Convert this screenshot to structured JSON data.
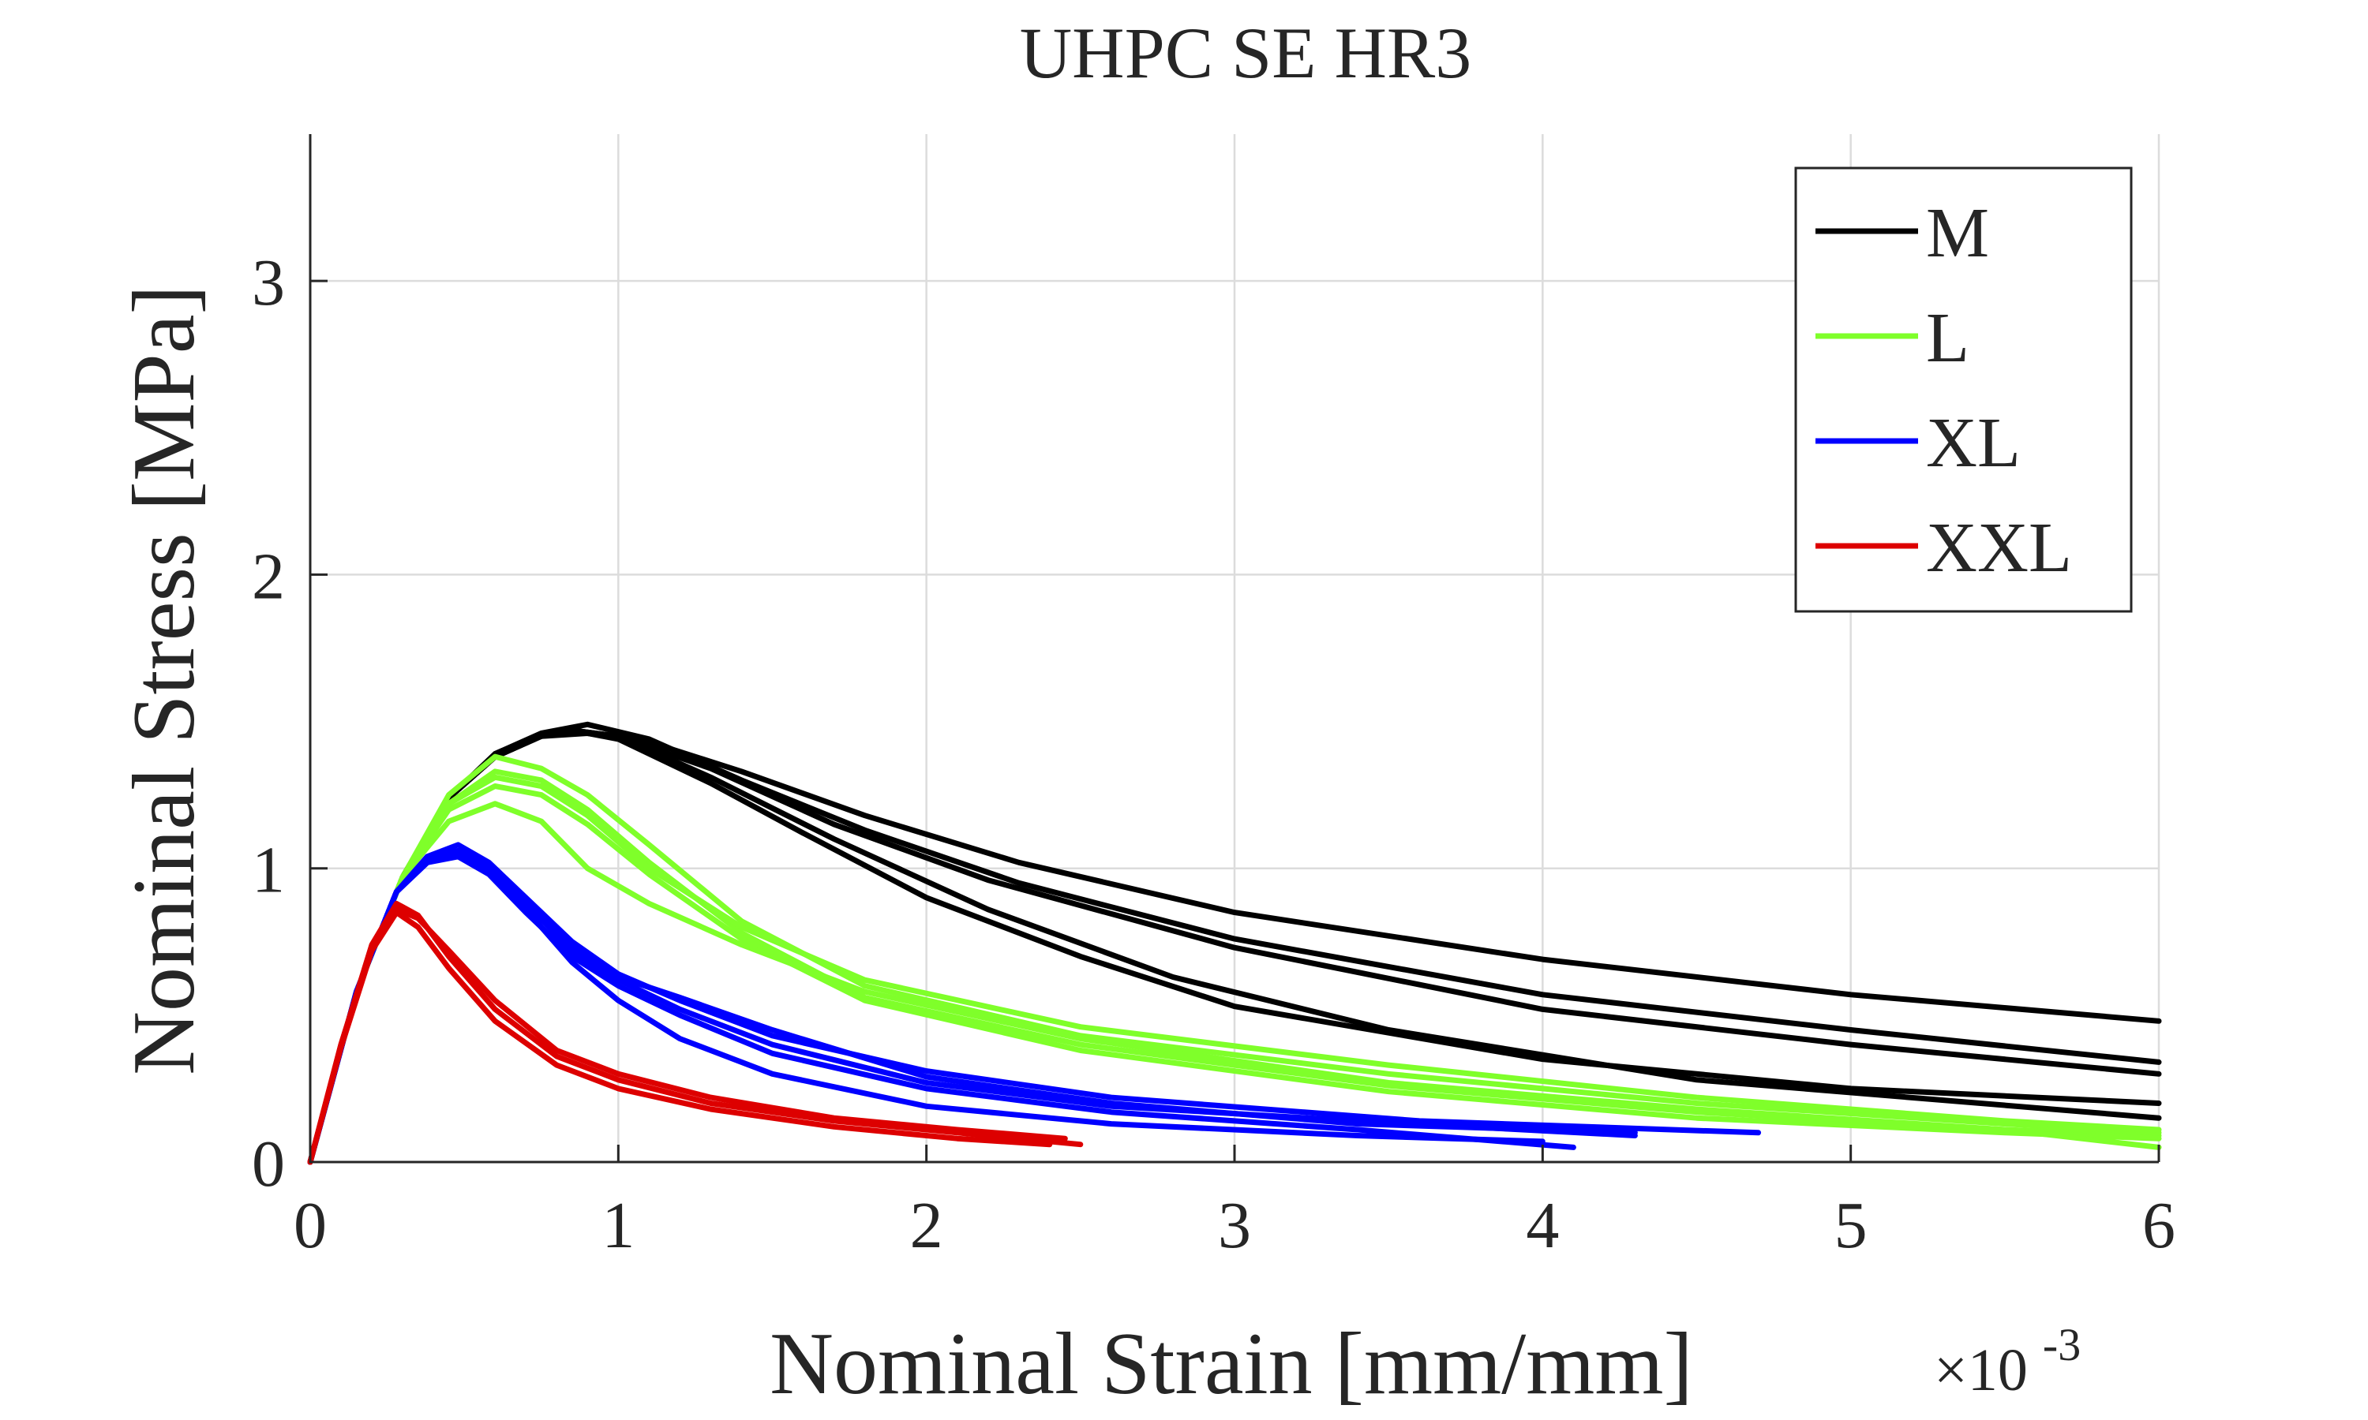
{
  "chart_data": {
    "type": "line",
    "title": "UHPC SE HR3",
    "xlabel": "Nominal Strain [mm/mm]",
    "ylabel": "Nominal Stress [MPa]",
    "x_exponent_label": "×10",
    "x_exponent_power": "-3",
    "xlim": [
      0,
      6
    ],
    "ylim": [
      0,
      3.5
    ],
    "x_ticks": [
      0,
      1,
      2,
      3,
      4,
      5,
      6
    ],
    "y_ticks": [
      0,
      1,
      2,
      3
    ],
    "grid": true,
    "legend_position": "top-right",
    "legend": [
      {
        "label": "M",
        "color": "#000000"
      },
      {
        "label": "L",
        "color": "#7fff2a"
      },
      {
        "label": "XL",
        "color": "#0000ff"
      },
      {
        "label": "XXL",
        "color": "#dd0000"
      }
    ],
    "series": [
      {
        "name": "M",
        "color": "#000000",
        "points": [
          [
            0,
            0
          ],
          [
            0.15,
            0.58
          ],
          [
            0.3,
            0.97
          ],
          [
            0.45,
            1.24
          ],
          [
            0.6,
            1.39
          ],
          [
            0.75,
            1.46
          ],
          [
            0.9,
            1.49
          ],
          [
            1.1,
            1.44
          ],
          [
            1.4,
            1.3
          ],
          [
            1.8,
            1.13
          ],
          [
            2.3,
            0.95
          ],
          [
            3,
            0.76
          ],
          [
            4,
            0.57
          ],
          [
            5,
            0.45
          ],
          [
            6,
            0.34
          ]
        ]
      },
      {
        "name": "M",
        "color": "#000000",
        "points": [
          [
            0,
            0
          ],
          [
            0.15,
            0.58
          ],
          [
            0.3,
            0.97
          ],
          [
            0.45,
            1.24
          ],
          [
            0.6,
            1.38
          ],
          [
            0.75,
            1.45
          ],
          [
            0.9,
            1.46
          ],
          [
            1.1,
            1.43
          ],
          [
            1.4,
            1.33
          ],
          [
            1.8,
            1.18
          ],
          [
            2.3,
            1.02
          ],
          [
            3,
            0.85
          ],
          [
            4,
            0.69
          ],
          [
            5,
            0.57
          ],
          [
            6,
            0.48
          ]
        ]
      },
      {
        "name": "M",
        "color": "#000000",
        "points": [
          [
            0,
            0
          ],
          [
            0.15,
            0.58
          ],
          [
            0.3,
            0.97
          ],
          [
            0.45,
            1.24
          ],
          [
            0.6,
            1.38
          ],
          [
            0.75,
            1.45
          ],
          [
            0.85,
            1.47
          ],
          [
            1,
            1.45
          ],
          [
            1.3,
            1.34
          ],
          [
            1.7,
            1.15
          ],
          [
            2.2,
            0.96
          ],
          [
            3,
            0.73
          ],
          [
            4,
            0.52
          ],
          [
            5,
            0.4
          ],
          [
            6,
            0.3
          ]
        ]
      },
      {
        "name": "M",
        "color": "#000000",
        "points": [
          [
            0,
            0
          ],
          [
            0.15,
            0.58
          ],
          [
            0.3,
            0.97
          ],
          [
            0.45,
            1.24
          ],
          [
            0.6,
            1.38
          ],
          [
            0.75,
            1.45
          ],
          [
            0.85,
            1.47
          ],
          [
            1,
            1.44
          ],
          [
            1.3,
            1.29
          ],
          [
            1.6,
            1.12
          ],
          [
            2,
            0.9
          ],
          [
            2.5,
            0.7
          ],
          [
            3,
            0.53
          ],
          [
            4,
            0.35
          ],
          [
            5,
            0.25
          ],
          [
            6,
            0.2
          ]
        ]
      },
      {
        "name": "M",
        "color": "#000000",
        "points": [
          [
            0,
            0
          ],
          [
            0.15,
            0.58
          ],
          [
            0.3,
            0.97
          ],
          [
            0.45,
            1.24
          ],
          [
            0.6,
            1.38
          ],
          [
            0.75,
            1.45
          ],
          [
            0.85,
            1.47
          ],
          [
            1,
            1.45
          ],
          [
            1.3,
            1.31
          ],
          [
            1.7,
            1.1
          ],
          [
            2.2,
            0.86
          ],
          [
            2.8,
            0.63
          ],
          [
            3.5,
            0.45
          ],
          [
            4.5,
            0.28
          ],
          [
            6,
            0.15
          ]
        ]
      },
      {
        "name": "L",
        "color": "#7fff2a",
        "points": [
          [
            0,
            0
          ],
          [
            0.15,
            0.58
          ],
          [
            0.3,
            0.97
          ],
          [
            0.45,
            1.22
          ],
          [
            0.6,
            1.33
          ],
          [
            0.75,
            1.3
          ],
          [
            0.9,
            1.2
          ],
          [
            1.1,
            1.02
          ],
          [
            1.4,
            0.78
          ],
          [
            1.8,
            0.56
          ],
          [
            2.5,
            0.4
          ],
          [
            3.5,
            0.26
          ],
          [
            4.5,
            0.17
          ],
          [
            5.5,
            0.11
          ],
          [
            6,
            0.09
          ]
        ]
      },
      {
        "name": "L",
        "color": "#7fff2a",
        "points": [
          [
            0,
            0
          ],
          [
            0.15,
            0.58
          ],
          [
            0.3,
            0.97
          ],
          [
            0.45,
            1.2
          ],
          [
            0.6,
            1.28
          ],
          [
            0.75,
            1.25
          ],
          [
            0.9,
            1.15
          ],
          [
            1.1,
            0.98
          ],
          [
            1.4,
            0.76
          ],
          [
            1.8,
            0.55
          ],
          [
            2.5,
            0.38
          ],
          [
            3.5,
            0.24
          ],
          [
            4.5,
            0.15
          ],
          [
            5.5,
            0.1
          ],
          [
            6,
            0.08
          ]
        ]
      },
      {
        "name": "L",
        "color": "#7fff2a",
        "points": [
          [
            0,
            0
          ],
          [
            0.15,
            0.58
          ],
          [
            0.3,
            0.97
          ],
          [
            0.45,
            1.16
          ],
          [
            0.6,
            1.22
          ],
          [
            0.75,
            1.16
          ],
          [
            0.9,
            1.0
          ],
          [
            1.1,
            0.88
          ],
          [
            1.4,
            0.74
          ],
          [
            1.8,
            0.58
          ],
          [
            2.5,
            0.42
          ],
          [
            3.5,
            0.27
          ],
          [
            4.5,
            0.18
          ],
          [
            5.5,
            0.11
          ],
          [
            6,
            0.05
          ]
        ]
      },
      {
        "name": "L",
        "color": "#7fff2a",
        "points": [
          [
            0,
            0
          ],
          [
            0.15,
            0.58
          ],
          [
            0.3,
            0.97
          ],
          [
            0.45,
            1.25
          ],
          [
            0.6,
            1.38
          ],
          [
            0.75,
            1.34
          ],
          [
            0.9,
            1.25
          ],
          [
            1.1,
            1.08
          ],
          [
            1.4,
            0.82
          ],
          [
            1.8,
            0.6
          ],
          [
            2.5,
            0.43
          ],
          [
            3.5,
            0.3
          ],
          [
            4.5,
            0.2
          ],
          [
            5.5,
            0.13
          ],
          [
            6,
            0.1
          ]
        ]
      },
      {
        "name": "L",
        "color": "#7fff2a",
        "points": [
          [
            0,
            0
          ],
          [
            0.15,
            0.58
          ],
          [
            0.3,
            0.97
          ],
          [
            0.45,
            1.22
          ],
          [
            0.6,
            1.31
          ],
          [
            0.75,
            1.28
          ],
          [
            0.9,
            1.18
          ],
          [
            1.1,
            1.0
          ],
          [
            1.4,
            0.8
          ],
          [
            1.8,
            0.62
          ],
          [
            2.5,
            0.46
          ],
          [
            3.5,
            0.33
          ],
          [
            4.5,
            0.22
          ],
          [
            5.5,
            0.14
          ],
          [
            6,
            0.11
          ]
        ]
      },
      {
        "name": "XL",
        "color": "#0000ff",
        "points": [
          [
            0,
            0
          ],
          [
            0.15,
            0.58
          ],
          [
            0.28,
            0.92
          ],
          [
            0.38,
            1.03
          ],
          [
            0.48,
            1.06
          ],
          [
            0.58,
            1.0
          ],
          [
            0.7,
            0.88
          ],
          [
            0.85,
            0.72
          ],
          [
            1.0,
            0.62
          ],
          [
            1.2,
            0.52
          ],
          [
            1.5,
            0.4
          ],
          [
            2,
            0.27
          ],
          [
            2.6,
            0.19
          ],
          [
            3.4,
            0.14
          ],
          [
            4.3,
            0.09
          ]
        ]
      },
      {
        "name": "XL",
        "color": "#0000ff",
        "points": [
          [
            0,
            0
          ],
          [
            0.15,
            0.58
          ],
          [
            0.28,
            0.92
          ],
          [
            0.38,
            1.02
          ],
          [
            0.48,
            1.04
          ],
          [
            0.58,
            0.98
          ],
          [
            0.7,
            0.85
          ],
          [
            0.85,
            0.7
          ],
          [
            1.0,
            0.6
          ],
          [
            1.2,
            0.5
          ],
          [
            1.5,
            0.37
          ],
          [
            2,
            0.25
          ],
          [
            2.6,
            0.17
          ],
          [
            3.4,
            0.11
          ],
          [
            4.1,
            0.05
          ]
        ]
      },
      {
        "name": "XL",
        "color": "#0000ff",
        "points": [
          [
            0,
            0
          ],
          [
            0.15,
            0.58
          ],
          [
            0.28,
            0.92
          ],
          [
            0.38,
            1.04
          ],
          [
            0.48,
            1.08
          ],
          [
            0.58,
            1.02
          ],
          [
            0.7,
            0.9
          ],
          [
            0.85,
            0.75
          ],
          [
            1.0,
            0.64
          ],
          [
            1.2,
            0.55
          ],
          [
            1.5,
            0.43
          ],
          [
            2,
            0.31
          ],
          [
            2.6,
            0.22
          ],
          [
            3.6,
            0.14
          ],
          [
            4.7,
            0.1
          ]
        ]
      },
      {
        "name": "XL",
        "color": "#0000ff",
        "points": [
          [
            0,
            0
          ],
          [
            0.15,
            0.58
          ],
          [
            0.28,
            0.92
          ],
          [
            0.38,
            1.02
          ],
          [
            0.48,
            1.05
          ],
          [
            0.58,
            1.0
          ],
          [
            0.7,
            0.86
          ],
          [
            0.85,
            0.68
          ],
          [
            1.0,
            0.55
          ],
          [
            1.2,
            0.42
          ],
          [
            1.5,
            0.3
          ],
          [
            2,
            0.19
          ],
          [
            2.6,
            0.13
          ],
          [
            3.4,
            0.09
          ],
          [
            4.0,
            0.07
          ]
        ]
      },
      {
        "name": "XL",
        "color": "#0000ff",
        "points": [
          [
            0,
            0
          ],
          [
            0.15,
            0.58
          ],
          [
            0.28,
            0.92
          ],
          [
            0.38,
            1.03
          ],
          [
            0.48,
            1.06
          ],
          [
            0.58,
            1.01
          ],
          [
            0.7,
            0.88
          ],
          [
            0.85,
            0.73
          ],
          [
            1.0,
            0.63
          ],
          [
            1.2,
            0.56
          ],
          [
            1.5,
            0.45
          ],
          [
            2,
            0.29
          ],
          [
            2.6,
            0.2
          ],
          [
            3.4,
            0.13
          ],
          [
            4.3,
            0.1
          ]
        ]
      },
      {
        "name": "XXL",
        "color": "#dd0000",
        "points": [
          [
            0,
            0
          ],
          [
            0.1,
            0.4
          ],
          [
            0.2,
            0.74
          ],
          [
            0.28,
            0.88
          ],
          [
            0.35,
            0.84
          ],
          [
            0.45,
            0.7
          ],
          [
            0.6,
            0.52
          ],
          [
            0.8,
            0.36
          ],
          [
            1.0,
            0.28
          ],
          [
            1.3,
            0.2
          ],
          [
            1.7,
            0.14
          ],
          [
            2.1,
            0.1
          ],
          [
            2.5,
            0.06
          ]
        ]
      },
      {
        "name": "XXL",
        "color": "#dd0000",
        "points": [
          [
            0,
            0
          ],
          [
            0.1,
            0.39
          ],
          [
            0.2,
            0.72
          ],
          [
            0.28,
            0.85
          ],
          [
            0.35,
            0.8
          ],
          [
            0.45,
            0.66
          ],
          [
            0.6,
            0.48
          ],
          [
            0.8,
            0.33
          ],
          [
            1.0,
            0.25
          ],
          [
            1.3,
            0.18
          ],
          [
            1.7,
            0.12
          ],
          [
            2.1,
            0.08
          ],
          [
            2.4,
            0.06
          ]
        ]
      },
      {
        "name": "XXL",
        "color": "#dd0000",
        "points": [
          [
            0,
            0
          ],
          [
            0.1,
            0.4
          ],
          [
            0.2,
            0.73
          ],
          [
            0.28,
            0.86
          ],
          [
            0.35,
            0.83
          ],
          [
            0.45,
            0.72
          ],
          [
            0.6,
            0.55
          ],
          [
            0.8,
            0.38
          ],
          [
            1.0,
            0.3
          ],
          [
            1.3,
            0.22
          ],
          [
            1.7,
            0.15
          ],
          [
            2.1,
            0.11
          ],
          [
            2.45,
            0.08
          ]
        ]
      }
    ]
  }
}
